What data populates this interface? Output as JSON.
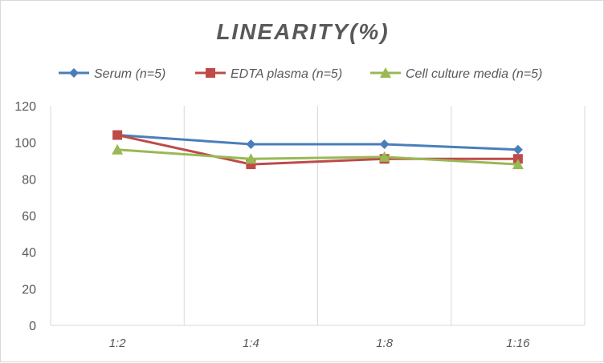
{
  "chart_data": {
    "type": "line",
    "title": "LINEARITY(%)",
    "categories": [
      "1:2",
      "1:4",
      "1:8",
      "1:16"
    ],
    "series": [
      {
        "name": "Serum (n=5)",
        "values": [
          104,
          99,
          99,
          96
        ],
        "color": "#4a7ebb",
        "marker": "diamond"
      },
      {
        "name": "EDTA plasma (n=5)",
        "values": [
          104,
          88,
          91,
          91
        ],
        "color": "#be4b48",
        "marker": "square"
      },
      {
        "name": "Cell culture media (n=5)",
        "values": [
          96,
          91,
          92,
          88
        ],
        "color": "#98b954",
        "marker": "triangle"
      }
    ],
    "ylim": [
      0,
      120
    ],
    "yticks": [
      0,
      20,
      40,
      60,
      80,
      100,
      120
    ],
    "grid": "vertical",
    "legend": "top"
  }
}
